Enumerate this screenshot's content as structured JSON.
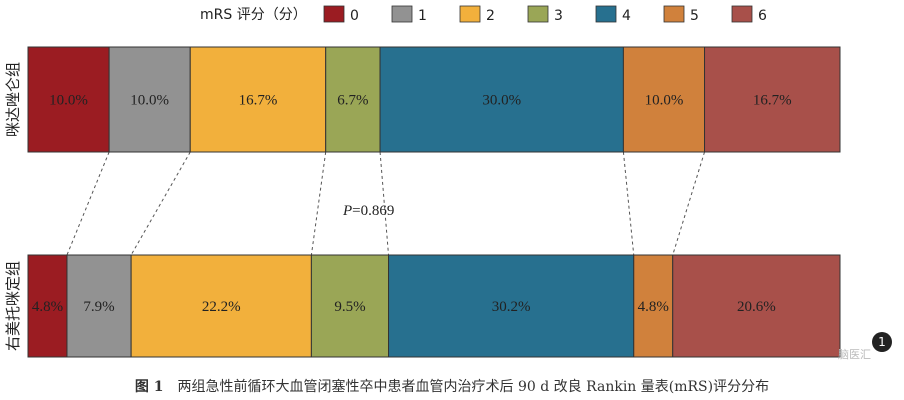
{
  "legend": {
    "title": "mRS 评分（分）",
    "entries": [
      {
        "label": "0",
        "color": "#9b1c22"
      },
      {
        "label": "1",
        "color": "#929292"
      },
      {
        "label": "2",
        "color": "#f2b03c"
      },
      {
        "label": "3",
        "color": "#9aa656"
      },
      {
        "label": "4",
        "color": "#27708f"
      },
      {
        "label": "5",
        "color": "#d0813c"
      },
      {
        "label": "6",
        "color": "#a8504a"
      }
    ]
  },
  "chart_data": {
    "type": "bar",
    "orientation": "horizontal-stacked-100",
    "categories": [
      "咪达唑仑组",
      "右美托咪定组"
    ],
    "series": [
      {
        "name": "0",
        "values": [
          10.0,
          4.8
        ],
        "labels": [
          "10.0%",
          "4.8%"
        ]
      },
      {
        "name": "1",
        "values": [
          10.0,
          7.9
        ],
        "labels": [
          "10.0%",
          "7.9%"
        ]
      },
      {
        "name": "2",
        "values": [
          16.7,
          22.2
        ],
        "labels": [
          "16.7%",
          "22.2%"
        ]
      },
      {
        "name": "3",
        "values": [
          6.7,
          9.5
        ],
        "labels": [
          "6.7%",
          "9.5%"
        ]
      },
      {
        "name": "4",
        "values": [
          30.0,
          30.2
        ],
        "labels": [
          "30.0%",
          "30.2%"
        ]
      },
      {
        "name": "5",
        "values": [
          10.0,
          4.8
        ],
        "labels": [
          "10.0%",
          "4.8%"
        ]
      },
      {
        "name": "6",
        "values": [
          16.7,
          20.6
        ],
        "labels": [
          "16.7%",
          "20.6%"
        ]
      }
    ],
    "annotation": {
      "italic": "P",
      "rest": "=0.869"
    },
    "legend_position": "top"
  },
  "caption": {
    "figure": "图 1",
    "text": "两组急性前循环大血管闭塞性卒中患者血管内治疗术后 90 d 改良 Rankin 量表(mRS)评分分布"
  },
  "watermark": {
    "badge": "1",
    "text": "脑医汇"
  }
}
